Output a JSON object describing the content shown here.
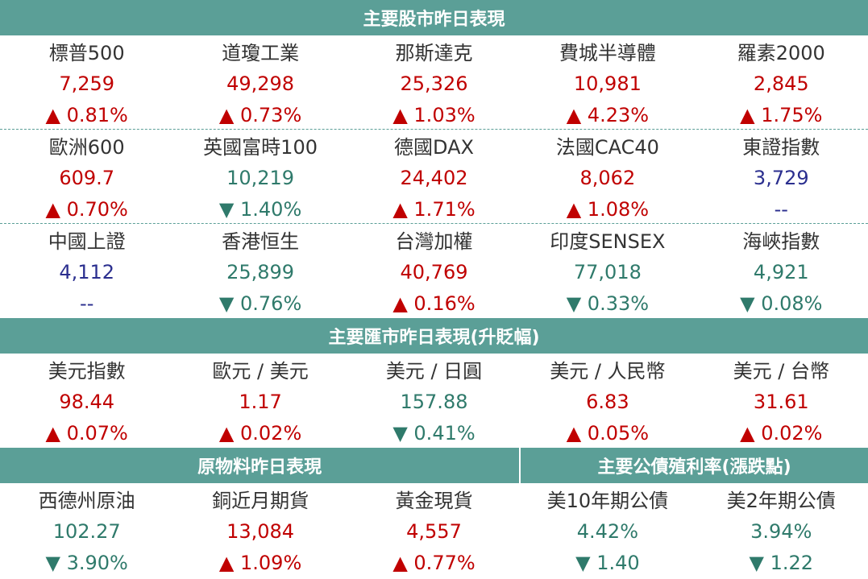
{
  "stock": {
    "title": "主要股市昨日表現",
    "rows": [
      [
        {
          "name": "標普500",
          "value": "7,259",
          "change": "▲ 0.81%",
          "color": "red"
        },
        {
          "name": "道瓊工業",
          "value": "49,298",
          "change": "▲ 0.73%",
          "color": "red"
        },
        {
          "name": "那斯達克",
          "value": "25,326",
          "change": "▲ 1.03%",
          "color": "red"
        },
        {
          "name": "費城半導體",
          "value": "10,981",
          "change": "▲ 4.23%",
          "color": "red"
        },
        {
          "name": "羅素2000",
          "value": "2,845",
          "change": "▲ 1.75%",
          "color": "red"
        }
      ],
      [
        {
          "name": "歐洲600",
          "value": "609.7",
          "change": "▲ 0.70%",
          "color": "red"
        },
        {
          "name": "英國富時100",
          "value": "10,219",
          "change": "▼ 1.40%",
          "color": "green"
        },
        {
          "name": "德國DAX",
          "value": "24,402",
          "change": "▲ 1.71%",
          "color": "red"
        },
        {
          "name": "法國CAC40",
          "value": "8,062",
          "change": "▲ 1.08%",
          "color": "red"
        },
        {
          "name": "東證指數",
          "value": "3,729",
          "change": "--",
          "color": "blue"
        }
      ],
      [
        {
          "name": "中國上證",
          "value": "4,112",
          "change": "--",
          "color": "blue"
        },
        {
          "name": "香港恒生",
          "value": "25,899",
          "change": "▼ 0.76%",
          "color": "green"
        },
        {
          "name": "台灣加權",
          "value": "40,769",
          "change": "▲ 0.16%",
          "color": "red"
        },
        {
          "name": "印度SENSEX",
          "value": "77,018",
          "change": "▼ 0.33%",
          "color": "green"
        },
        {
          "name": "海峽指數",
          "value": "4,921",
          "change": "▼ 0.08%",
          "color": "green"
        }
      ]
    ]
  },
  "fx": {
    "title": "主要匯市昨日表現(升貶幅)",
    "rows": [
      [
        {
          "name": "美元指數",
          "value": "98.44",
          "change": "▲ 0.07%",
          "color": "red"
        },
        {
          "name": "歐元 / 美元",
          "value": "1.17",
          "change": "▲ 0.02%",
          "color": "red"
        },
        {
          "name": "美元 / 日圓",
          "value": "157.88",
          "change": "▼ 0.41%",
          "color": "green"
        },
        {
          "name": "美元 / 人民幣",
          "value": "6.83",
          "change": "▲ 0.05%",
          "color": "red"
        },
        {
          "name": "美元 / 台幣",
          "value": "31.61",
          "change": "▲ 0.02%",
          "color": "red"
        }
      ]
    ]
  },
  "commodity": {
    "title": "原物料昨日表現",
    "rows": [
      [
        {
          "name": "西德州原油",
          "value": "102.27",
          "change": "▼ 3.90%",
          "color": "green"
        },
        {
          "name": "銅近月期貨",
          "value": "13,084",
          "change": "▲ 1.09%",
          "color": "red"
        },
        {
          "name": "黃金現貨",
          "value": "4,557",
          "change": "▲ 0.77%",
          "color": "red"
        }
      ]
    ]
  },
  "bond": {
    "title": "主要公債殖利率(漲跌點)",
    "rows": [
      [
        {
          "name": "美10年期公債",
          "value": "4.42%",
          "change": "▼ 1.40",
          "color": "green"
        },
        {
          "name": "美2年期公債",
          "value": "3.94%",
          "change": "▼ 1.22",
          "color": "green"
        }
      ]
    ]
  }
}
